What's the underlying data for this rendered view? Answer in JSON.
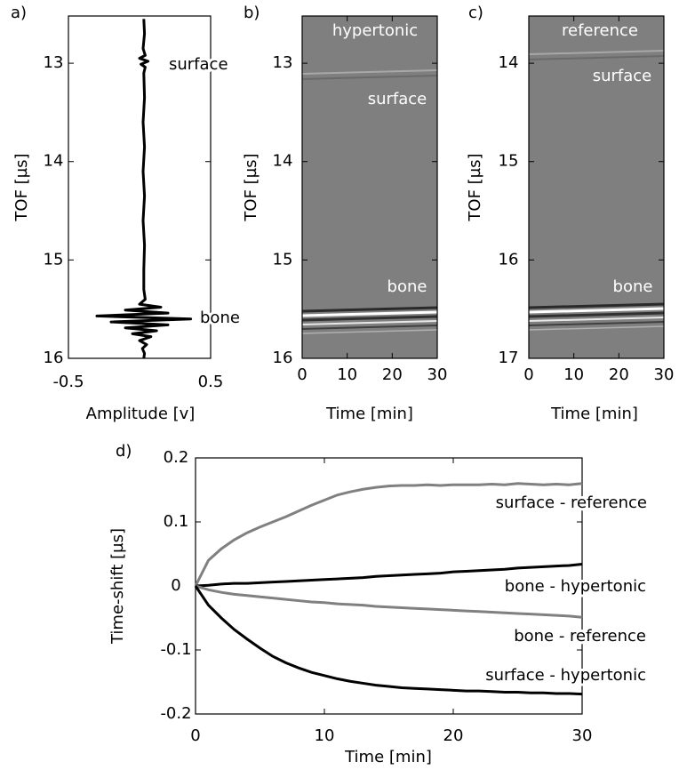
{
  "chart_data": [
    {
      "type": "line",
      "panel_label": "a)",
      "x_label": "Amplitude [v]",
      "y_label": "TOF  [µs]",
      "xlim": [
        -0.5,
        0.5
      ],
      "xticks": [
        -0.5,
        0.5
      ],
      "ylim": [
        12.52,
        16
      ],
      "yticks": [
        13,
        14,
        15,
        16
      ],
      "y_reversed": true,
      "color": "#000000",
      "x": [
        0.03,
        0.035,
        0.025,
        0.04,
        0.0,
        0.06,
        0.01,
        0.04,
        0.03,
        0.035,
        0.025,
        0.035,
        0.025,
        0.035,
        0.025,
        0.035,
        0.03,
        0.03,
        0.04,
        0.0,
        0.15,
        -0.1,
        0.2,
        -0.3,
        0.36,
        -0.2,
        0.2,
        -0.1,
        0.12,
        -0.05,
        0.08,
        0.0,
        0.05,
        0.02,
        0.035,
        0.03
      ],
      "values": [
        12.55,
        12.7,
        12.85,
        12.92,
        12.95,
        12.98,
        13.01,
        13.04,
        13.1,
        13.35,
        13.6,
        13.85,
        14.1,
        14.35,
        14.6,
        14.85,
        15.1,
        15.3,
        15.4,
        15.45,
        15.48,
        15.51,
        15.54,
        15.57,
        15.6,
        15.63,
        15.66,
        15.69,
        15.72,
        15.75,
        15.78,
        15.82,
        15.86,
        15.9,
        15.95,
        16.0
      ],
      "annotations": [
        "surface",
        "bone"
      ]
    },
    {
      "type": "image",
      "panel_label": "b)",
      "x_label": "Time [min]",
      "y_label": "TOF  [µs]",
      "xlim": [
        0,
        30
      ],
      "xticks": [
        0,
        10,
        20,
        30
      ],
      "ylim": [
        12.52,
        16
      ],
      "yticks": [
        13,
        14,
        15,
        16
      ],
      "y_reversed": true,
      "annotations": [
        "hypertonic",
        "surface",
        "bone"
      ]
    },
    {
      "type": "image",
      "panel_label": "c)",
      "x_label": "Time [min]",
      "y_label": "TOF  [µs]",
      "xlim": [
        0,
        30
      ],
      "xticks": [
        0,
        10,
        20,
        30
      ],
      "ylim": [
        13.52,
        17
      ],
      "yticks": [
        14,
        15,
        16,
        17
      ],
      "y_reversed": true,
      "annotations": [
        "reference",
        "surface",
        "bone"
      ]
    },
    {
      "type": "line",
      "panel_label": "d)",
      "x_label": "Time [min]",
      "y_label": "Time-shift  [µs]",
      "xlim": [
        0,
        30
      ],
      "xticks": [
        0,
        10,
        20,
        30
      ],
      "ylim": [
        -0.2,
        0.2
      ],
      "yticks": [
        -0.2,
        -0.1,
        0,
        0.1,
        0.2
      ],
      "x": [
        0,
        1,
        2,
        3,
        4,
        5,
        6,
        7,
        8,
        9,
        10,
        11,
        12,
        13,
        14,
        15,
        16,
        17,
        18,
        19,
        20,
        21,
        22,
        23,
        24,
        25,
        26,
        27,
        28,
        29,
        30
      ],
      "series": [
        {
          "name": "surface - reference",
          "color": "#808080",
          "values": [
            0,
            0.04,
            0.058,
            0.072,
            0.083,
            0.092,
            0.1,
            0.108,
            0.117,
            0.126,
            0.134,
            0.142,
            0.147,
            0.151,
            0.154,
            0.156,
            0.157,
            0.157,
            0.158,
            0.157,
            0.158,
            0.158,
            0.158,
            0.159,
            0.158,
            0.16,
            0.159,
            0.158,
            0.159,
            0.158,
            0.16
          ]
        },
        {
          "name": "bone - hypertonic",
          "color": "#000000",
          "values": [
            0,
            0.001,
            0.003,
            0.004,
            0.004,
            0.005,
            0.006,
            0.007,
            0.008,
            0.009,
            0.01,
            0.011,
            0.012,
            0.013,
            0.015,
            0.016,
            0.017,
            0.018,
            0.019,
            0.02,
            0.022,
            0.023,
            0.024,
            0.025,
            0.026,
            0.028,
            0.029,
            0.03,
            0.031,
            0.032,
            0.034
          ]
        },
        {
          "name": "bone - reference",
          "color": "#808080",
          "values": [
            0,
            -0.006,
            -0.01,
            -0.013,
            -0.015,
            -0.017,
            -0.019,
            -0.021,
            -0.023,
            -0.025,
            -0.026,
            -0.028,
            -0.029,
            -0.03,
            -0.032,
            -0.033,
            -0.034,
            -0.035,
            -0.036,
            -0.037,
            -0.038,
            -0.039,
            -0.04,
            -0.041,
            -0.042,
            -0.043,
            -0.044,
            -0.045,
            -0.046,
            -0.047,
            -0.049
          ]
        },
        {
          "name": "surface - hypertonic",
          "color": "#000000",
          "values": [
            0,
            -0.03,
            -0.05,
            -0.068,
            -0.083,
            -0.097,
            -0.11,
            -0.12,
            -0.128,
            -0.135,
            -0.14,
            -0.145,
            -0.149,
            -0.152,
            -0.155,
            -0.157,
            -0.159,
            -0.16,
            -0.161,
            -0.162,
            -0.163,
            -0.164,
            -0.164,
            -0.165,
            -0.166,
            -0.166,
            -0.167,
            -0.167,
            -0.168,
            -0.168,
            -0.169
          ]
        }
      ]
    }
  ]
}
